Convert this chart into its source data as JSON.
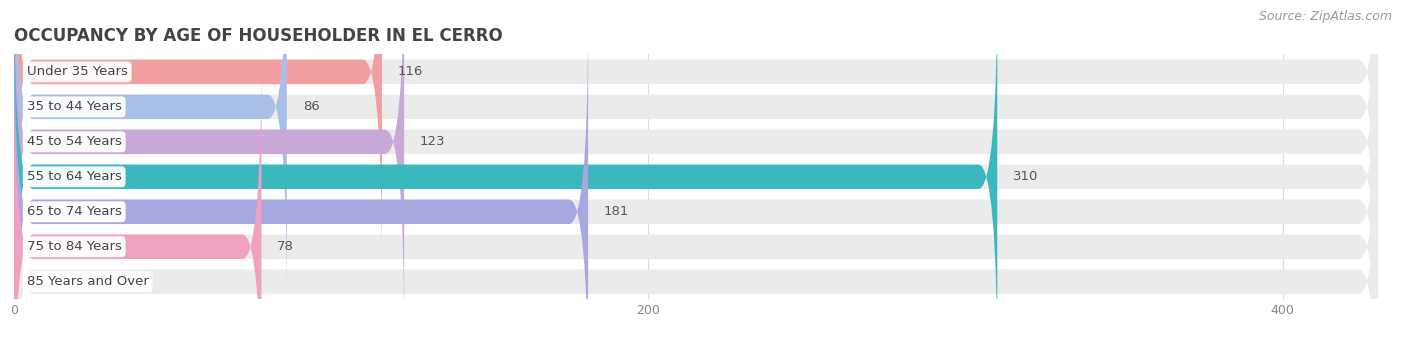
{
  "title": "OCCUPANCY BY AGE OF HOUSEHOLDER IN EL CERRO",
  "source": "Source: ZipAtlas.com",
  "categories": [
    "Under 35 Years",
    "35 to 44 Years",
    "45 to 54 Years",
    "55 to 64 Years",
    "65 to 74 Years",
    "75 to 84 Years",
    "85 Years and Over"
  ],
  "values": [
    116,
    86,
    123,
    310,
    181,
    78,
    0
  ],
  "bar_colors": [
    "#f0a0a0",
    "#a8c0e8",
    "#c8a8d8",
    "#3ab8be",
    "#a8a8e0",
    "#f0a0c0",
    "#f8d8a8"
  ],
  "bar_bg_color": "#ebebeb",
  "xlim_max": 430,
  "xticks": [
    0,
    200,
    400
  ],
  "title_fontsize": 12,
  "label_fontsize": 9.5,
  "value_fontsize": 9.5,
  "bar_height": 0.7,
  "background_color": "#ffffff",
  "value_color_outside": "#555555",
  "value_color_inside": "#ffffff",
  "title_color": "#444444",
  "source_color": "#999999",
  "source_fontsize": 9,
  "grid_color": "#dddddd",
  "label_bg_color": "#ffffff"
}
